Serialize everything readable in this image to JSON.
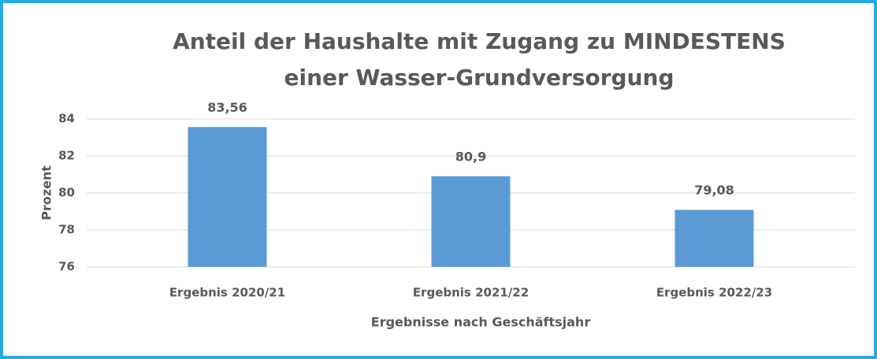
{
  "chart_data": {
    "type": "bar",
    "title": [
      "Anteil der Haushalte mit Zugang zu MINDESTENS",
      "einer Wasser-Grundversorgung"
    ],
    "xlabel": "Ergebnisse nach Geschäftsjahr",
    "ylabel": "Prozent",
    "categories": [
      "Ergebnis 2020/21",
      "Ergebnis 2021/22",
      "Ergebnis 2022/23"
    ],
    "values": [
      83.56,
      80.9,
      79.08
    ],
    "value_labels": [
      "83,56",
      "80,9",
      "79,08"
    ],
    "color": "#5b9bd5",
    "ylim": [
      76,
      84
    ],
    "yticks": [
      76,
      78,
      80,
      82,
      84
    ],
    "grid": true
  }
}
